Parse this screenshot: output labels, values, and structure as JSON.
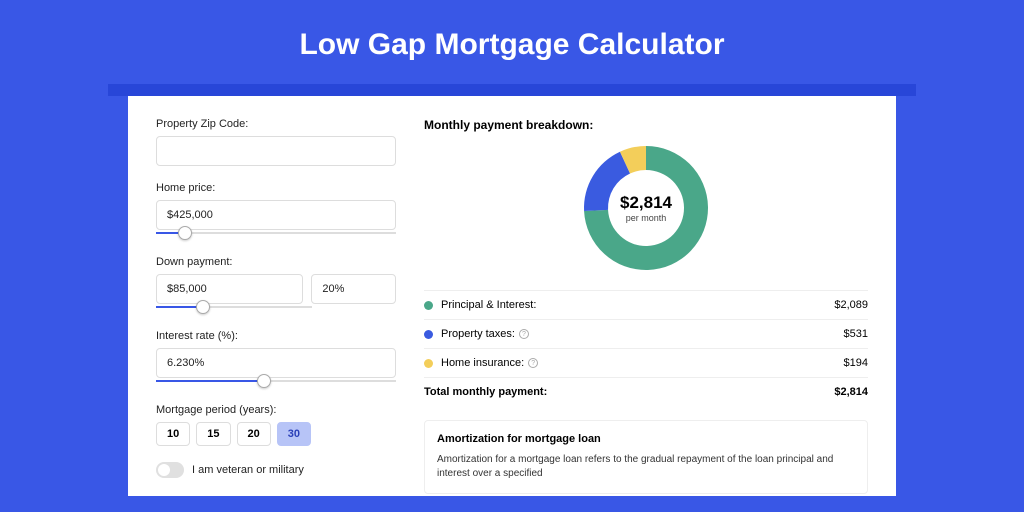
{
  "title": "Low Gap Mortgage Calculator",
  "colors": {
    "page_bg": "#3957e6",
    "shadow_bar": "#2846d8",
    "card_bg": "#ffffff",
    "selected_bg": "#b7c4f7",
    "selected_text": "#2a3fb8",
    "border": "#dddddd",
    "slider_fill": "#3957e6",
    "series_pi": "#4aa789",
    "series_tax": "#3a5be0",
    "series_ins": "#f3ce5a"
  },
  "form": {
    "zip_label": "Property Zip Code:",
    "zip_value": "",
    "home_price_label": "Home price:",
    "home_price_value": "$425,000",
    "home_price_slider_pct": 12,
    "down_payment_label": "Down payment:",
    "down_payment_value": "$85,000",
    "down_payment_pct_value": "20%",
    "down_payment_slider_pct": 30,
    "interest_label": "Interest rate (%):",
    "interest_value": "6.230%",
    "interest_slider_pct": 45,
    "period_label": "Mortgage period (years):",
    "periods": [
      "10",
      "15",
      "20",
      "30"
    ],
    "period_selected_index": 3,
    "veteran_label": "I am veteran or military",
    "veteran_on": false
  },
  "breakdown": {
    "title": "Monthly payment breakdown:",
    "donut": {
      "type": "donut",
      "amount": "$2,814",
      "sub": "per month",
      "segments": [
        {
          "key": "pi",
          "value": 2089,
          "color": "#4aa789"
        },
        {
          "key": "tax",
          "value": 531,
          "color": "#3a5be0"
        },
        {
          "key": "ins",
          "value": 194,
          "color": "#f3ce5a"
        }
      ],
      "inner_radius": 38,
      "outer_radius": 62,
      "start_angle_deg": -90
    },
    "rows": [
      {
        "label": "Principal & Interest:",
        "value": "$2,089",
        "color": "#4aa789",
        "info": false
      },
      {
        "label": "Property taxes:",
        "value": "$531",
        "color": "#3a5be0",
        "info": true
      },
      {
        "label": "Home insurance:",
        "value": "$194",
        "color": "#f3ce5a",
        "info": true
      }
    ],
    "total_label": "Total monthly payment:",
    "total_value": "$2,814"
  },
  "amortization": {
    "title": "Amortization for mortgage loan",
    "text": "Amortization for a mortgage loan refers to the gradual repayment of the loan principal and interest over a specified"
  }
}
